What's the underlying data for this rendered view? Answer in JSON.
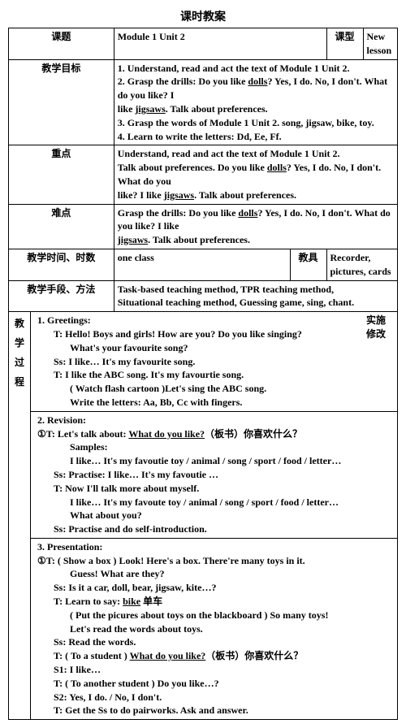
{
  "page_title": "课时教案",
  "labels": {
    "keti": "课题",
    "kexing": "课型",
    "mubiao": "教学目标",
    "zhongdian": "重点",
    "nandian": "难点",
    "shijian": "教学时间、时数",
    "jiaoju": "教具",
    "shouduan": "教学手段、方法",
    "guocheng": "教\n学\n过\n程",
    "shishi": "实施修改"
  },
  "row_keti": {
    "value": "Module 1 Unit 2",
    "kexing_value": "New lesson"
  },
  "mubiao_lines": [
    {
      "pre": "1. Understand, read and act the text of Module 1 Unit 2."
    },
    {
      "pre": "2. Grasp the drills: Do you like ",
      "u": "dolls",
      "post": "? Yes, I do. No, I don't. What do you like? I"
    },
    {
      "pre": "like ",
      "u": "jigsaws",
      "post": ". Talk about preferences."
    },
    {
      "pre": "3. Grasp the words of Module 1 Unit 2. song, jigsaw, bike, toy."
    },
    {
      "pre": "4. Learn to write the letters: Dd, Ee, Ff."
    }
  ],
  "zhongdian_lines": [
    {
      "pre": "Understand, read and act the text of Module 1 Unit 2."
    },
    {
      "pre": "Talk about preferences. Do you like ",
      "u": "dolls",
      "post": "? Yes, I do. No, I don't. What do you"
    },
    {
      "pre": "like? I like ",
      "u": "jigsaws",
      "post": ". Talk about preferences."
    }
  ],
  "nandian_lines": [
    {
      "pre": "Grasp the drills: Do you like ",
      "u": "dolls",
      "post": "? Yes, I do. No, I don't. What do you like? I like"
    },
    {
      "pre": "",
      "u": "jigsaws",
      "post": ". Talk about preferences."
    }
  ],
  "shijian_value": "one class",
  "jiaoju_value": "Recorder, pictures, cards",
  "shouduan_lines": [
    "Task-based teaching method, TPR teaching method,",
    "Situational teaching method, Guessing game, sing, chant."
  ],
  "proc": {
    "sec1": {
      "heading": "1. Greetings:",
      "lines": [
        {
          "cls": "indent1",
          "pre": "T: Hello! Boys and girls! How are you? Do you like singing?"
        },
        {
          "cls": "indent2",
          "pre": "What's your favourite song?"
        },
        {
          "cls": "indent1",
          "pre": "Ss: I like… It's my favourite song."
        },
        {
          "cls": "indent1",
          "pre": "T: I like the ABC song. It's my favourtie song."
        },
        {
          "cls": "indent2",
          "pre": "( Watch flash cartoon )Let's sing the ABC song."
        },
        {
          "cls": "indent2",
          "pre": "Write the letters: Aa, Bb, Cc with fingers."
        }
      ]
    },
    "sec2": {
      "heading": "2. Revision:",
      "lines": [
        {
          "cls": "indent0",
          "circ": "①",
          "pre": "T: Let's talk about: ",
          "u": "What do you like?",
          "post": "（板书）你喜欢什么？"
        },
        {
          "cls": "indent2",
          "pre": "Samples:"
        },
        {
          "cls": "indent2",
          "pre": "I like… It's my favoutie toy / animal / song / sport / food / letter…"
        },
        {
          "cls": "indent1",
          "pre": "Ss: Practise: I like… It's my favoutie …"
        },
        {
          "cls": "indent1",
          "pre": "T: Now I'll talk more about myself."
        },
        {
          "cls": "indent2",
          "pre": "I like… It's my favoute toy / animal / song / sport / food / letter…"
        },
        {
          "cls": "indent2",
          "pre": "What about you?"
        },
        {
          "cls": "indent1",
          "pre": "Ss: Practise and do self-introduction."
        }
      ]
    },
    "sec3": {
      "heading": "3. Presentation:",
      "lines": [
        {
          "cls": "indent0",
          "circ": "①",
          "pre": "T: ( Show a box ) Look! Here's a box. There're many toys in it."
        },
        {
          "cls": "indent2",
          "pre": "Guess! What are they?"
        },
        {
          "cls": "indent1",
          "pre": "Ss: Is it a car, doll, bear, jigsaw, kite…?"
        },
        {
          "cls": "indent1",
          "pre": "T: Learn to say: ",
          "u": "bike",
          "post": "  单车"
        },
        {
          "cls": "indent2",
          "pre": "( Put the picures about toys on the blackboard ) So many toys!"
        },
        {
          "cls": "indent2",
          "pre": "Let's read the words about toys."
        },
        {
          "cls": "indent1",
          "pre": "Ss: Read the words."
        },
        {
          "cls": "indent1",
          "pre": "T:  ( To a student ) ",
          "u": "What do you like?",
          "post": "（板书）你喜欢什么？"
        },
        {
          "cls": "indent1",
          "pre": "S1: I like…"
        },
        {
          "cls": "indent1",
          "pre": "T:  ( To another student ) Do you like…?"
        },
        {
          "cls": "indent1",
          "pre": "S2: Yes, I do. / No, I don't."
        },
        {
          "cls": "indent1",
          "pre": "T: Get the Ss to do pairworks. Ask and answer."
        }
      ]
    }
  }
}
